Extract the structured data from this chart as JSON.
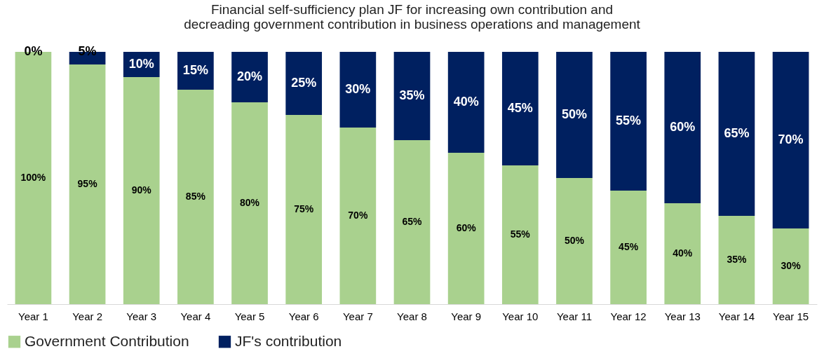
{
  "chart_data": {
    "type": "bar",
    "title": "Financial self-sufficiency plan JF for increasing own contribution and decreading government contribution in business operations and management",
    "stacked": true,
    "legend": "bottom",
    "categories": [
      "Year 1",
      "Year 2",
      "Year 3",
      "Year 4",
      "Year 5",
      "Year 6",
      "Year 7",
      "Year 8",
      "Year 9",
      "Year 10",
      "Year 11",
      "Year 12",
      "Year 13",
      "Year 14",
      "Year 15"
    ],
    "series": [
      {
        "name": "Government Contribution",
        "color": "#a9d18e",
        "values": [
          100,
          95,
          90,
          85,
          80,
          75,
          70,
          65,
          60,
          55,
          50,
          45,
          40,
          35,
          30
        ],
        "value_labels": [
          "100%",
          "95%",
          "90%",
          "85%",
          "80%",
          "75%",
          "70%",
          "65%",
          "60%",
          "55%",
          "50%",
          "45%",
          "40%",
          "35%",
          "30%"
        ]
      },
      {
        "name": "JF's contribution",
        "color": "#002060",
        "values": [
          0,
          5,
          10,
          15,
          20,
          25,
          30,
          35,
          40,
          45,
          50,
          55,
          60,
          65,
          70
        ],
        "value_labels": [
          "0%",
          "5%",
          "10%",
          "15%",
          "20%",
          "25%",
          "30%",
          "35%",
          "40%",
          "45%",
          "50%",
          "55%",
          "60%",
          "65%",
          "70%"
        ]
      }
    ]
  }
}
